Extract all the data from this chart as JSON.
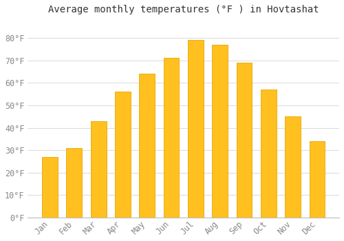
{
  "title": "Average monthly temperatures (°F ) in Hovtashat",
  "months": [
    "Jan",
    "Feb",
    "Mar",
    "Apr",
    "May",
    "Jun",
    "Jul",
    "Aug",
    "Sep",
    "Oct",
    "Nov",
    "Dec"
  ],
  "values": [
    27,
    31,
    43,
    56,
    64,
    71,
    79,
    77,
    69,
    57,
    45,
    34
  ],
  "bar_color": "#FFC020",
  "bar_edge_color": "#E8A800",
  "background_color": "#FFFFFF",
  "grid_color": "#DDDDDD",
  "text_color": "#888888",
  "title_color": "#333333",
  "ylim": [
    0,
    88
  ],
  "yticks": [
    0,
    10,
    20,
    30,
    40,
    50,
    60,
    70,
    80
  ],
  "ylabel_suffix": "°F",
  "title_fontsize": 10,
  "tick_fontsize": 8.5,
  "figsize": [
    5.0,
    3.5
  ],
  "dpi": 100
}
